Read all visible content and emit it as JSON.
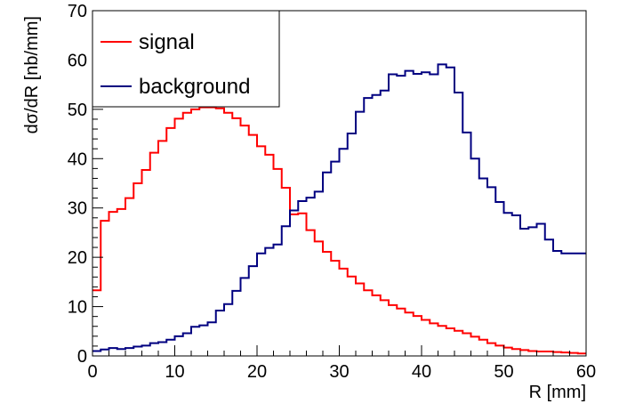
{
  "chart_data": {
    "type": "line",
    "style": "step-histogram",
    "title": "",
    "xlabel": "R [mm]",
    "ylabel": "dσ/dR [nb/mm]",
    "xlim": [
      0,
      60
    ],
    "ylim": [
      0,
      70
    ],
    "xticks": [
      0,
      10,
      20,
      30,
      40,
      50,
      60
    ],
    "yticks": [
      0,
      10,
      20,
      30,
      40,
      50,
      60,
      70
    ],
    "grid": false,
    "legend_position": "top-left",
    "bin_width": 1,
    "x": [
      0.5,
      1.5,
      2.5,
      3.5,
      4.5,
      5.5,
      6.5,
      7.5,
      8.5,
      9.5,
      10.5,
      11.5,
      12.5,
      13.5,
      14.5,
      15.5,
      16.5,
      17.5,
      18.5,
      19.5,
      20.5,
      21.5,
      22.5,
      23.5,
      24.5,
      25.5,
      26.5,
      27.5,
      28.5,
      29.5,
      30.5,
      31.5,
      32.5,
      33.5,
      34.5,
      35.5,
      36.5,
      37.5,
      38.5,
      39.5,
      40.5,
      41.5,
      42.5,
      43.5,
      44.5,
      45.5,
      46.5,
      47.5,
      48.5,
      49.5,
      50.5,
      51.5,
      52.5,
      53.5,
      54.5,
      55.5,
      56.5,
      57.5,
      58.5,
      59.5
    ],
    "series": [
      {
        "name": "signal",
        "color": "#ff0000",
        "values": [
          13.3,
          27.4,
          29.2,
          29.8,
          32,
          35,
          37.7,
          41.2,
          43.6,
          46.2,
          48.1,
          49.3,
          50,
          50.4,
          50.4,
          50.2,
          49.3,
          48.2,
          46.7,
          44.8,
          42.5,
          40.8,
          37.9,
          34.1,
          28.7,
          28.9,
          25.5,
          23.2,
          21.1,
          19.3,
          17.7,
          16.1,
          14.7,
          13.3,
          12.3,
          11.3,
          10.3,
          9.6,
          8.8,
          8.1,
          7.3,
          6.6,
          6.1,
          5.6,
          5.1,
          4.6,
          3.9,
          3.3,
          2.6,
          2.1,
          1.7,
          1.4,
          1.2,
          1,
          0.9,
          0.9,
          0.8,
          0.7,
          0.6,
          0.5
        ]
      },
      {
        "name": "background",
        "color": "#000080",
        "values": [
          1,
          1.3,
          1.6,
          1.4,
          1.6,
          1.9,
          2.1,
          2.6,
          2.8,
          3.3,
          4,
          4.6,
          5.9,
          6.2,
          6.8,
          9.2,
          10.5,
          13.2,
          15.8,
          18.2,
          20.8,
          21.9,
          22.6,
          26.3,
          29.5,
          31.4,
          32.1,
          33.3,
          37.2,
          39.4,
          42,
          45.1,
          49.5,
          52.3,
          52.9,
          53.8,
          57.1,
          56.8,
          57.8,
          57.2,
          57.5,
          57.1,
          59.1,
          58.5,
          53.4,
          45.3,
          40,
          36,
          34.2,
          31.2,
          29,
          28.5,
          25.8,
          26.1,
          26.8,
          23.6,
          21.3,
          20.8,
          20.8,
          20.8
        ]
      }
    ]
  }
}
